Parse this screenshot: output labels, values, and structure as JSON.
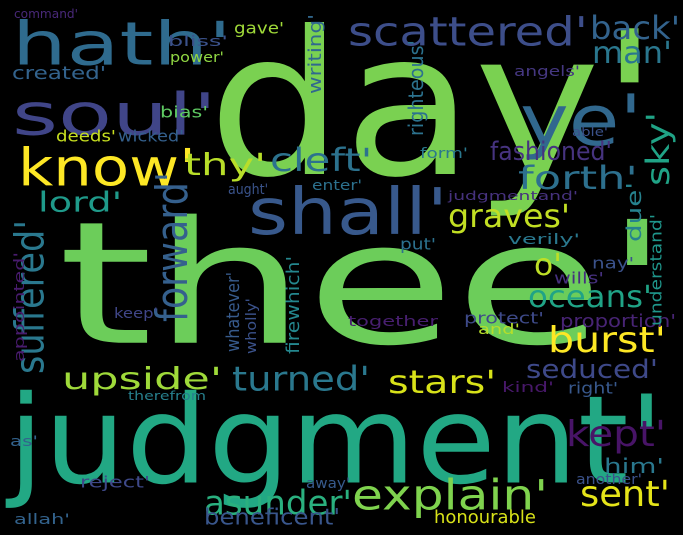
{
  "words": [
    {
      "text": "thee'",
      "color": "#6ccd5a"
    },
    {
      "text": "day'",
      "color": "#7ad151"
    },
    {
      "text": "judgment'",
      "color": "#22a884"
    },
    {
      "text": "hath'",
      "color": "#2f6b8e"
    },
    {
      "text": "soul'",
      "color": "#404588"
    },
    {
      "text": "know'",
      "color": "#fde725"
    },
    {
      "text": "shall'",
      "color": "#38598c"
    },
    {
      "text": "ye'",
      "color": "#31688e"
    },
    {
      "text": "scattered'",
      "color": "#3d4e8a"
    },
    {
      "text": "back'",
      "color": "#33638d"
    },
    {
      "text": "man'",
      "color": "#2a778e"
    },
    {
      "text": "explain'",
      "color": "#7fd34e"
    },
    {
      "text": "asunder'",
      "color": "#2ab07f"
    },
    {
      "text": "burst'",
      "color": "#fde725"
    },
    {
      "text": "stars'",
      "color": "#d8e219"
    },
    {
      "text": "upside'",
      "color": "#9fda3a"
    },
    {
      "text": "turned'",
      "color": "#2a788e"
    },
    {
      "text": "oceans'",
      "color": "#20a386"
    },
    {
      "text": "graves'",
      "color": "#c2df23"
    },
    {
      "text": "forth'",
      "color": "#2d708e"
    },
    {
      "text": "cleft'",
      "color": "#2c728e"
    },
    {
      "text": "thy'",
      "color": "#b8de29"
    },
    {
      "text": "lord'",
      "color": "#1f9a8a"
    },
    {
      "text": "kept'",
      "color": "#481467"
    },
    {
      "text": "sent'",
      "color": "#e5e419"
    },
    {
      "text": "seduced'",
      "color": "#3e4989"
    },
    {
      "text": "fashioned'",
      "color": "#46337f"
    },
    {
      "text": "sky'",
      "color": "#20a386"
    },
    {
      "text": "o'",
      "color": "#bddf26"
    },
    {
      "text": "forward'",
      "color": "#35608d"
    },
    {
      "text": "suffered'",
      "color": "#2a788e"
    },
    {
      "text": "beneficent'",
      "color": "#39568c"
    },
    {
      "text": "honourable",
      "color": "#d8e219"
    },
    {
      "text": "him'",
      "color": "#2a788e"
    },
    {
      "text": "created'",
      "color": "#33638d"
    },
    {
      "text": "deeds'",
      "color": "#c8e020"
    },
    {
      "text": "wicked'",
      "color": "#34608d"
    },
    {
      "text": "bliss'",
      "color": "#3b528b"
    },
    {
      "text": "gave'",
      "color": "#a0da39"
    },
    {
      "text": "power'",
      "color": "#90d743"
    },
    {
      "text": "command'",
      "color": "#482878"
    },
    {
      "text": "bias'",
      "color": "#5ec962"
    },
    {
      "text": "angels'",
      "color": "#453781"
    },
    {
      "text": "able'",
      "color": "#3b528b"
    },
    {
      "text": "form'",
      "color": "#2a788e"
    },
    {
      "text": "aught'",
      "color": "#3a538b"
    },
    {
      "text": "enter'",
      "color": "#2c718e"
    },
    {
      "text": "judgmentand'",
      "color": "#46327e"
    },
    {
      "text": "due'",
      "color": "#26828e"
    },
    {
      "text": "verily'",
      "color": "#2a788e"
    },
    {
      "text": "put'",
      "color": "#2c718e"
    },
    {
      "text": "nay'",
      "color": "#3b528b"
    },
    {
      "text": "wills'",
      "color": "#46307e"
    },
    {
      "text": "protect'",
      "color": "#3e4a89"
    },
    {
      "text": "together",
      "color": "#481f70"
    },
    {
      "text": "and'",
      "color": "#b5de2b"
    },
    {
      "text": "proportion'",
      "color": "#482475"
    },
    {
      "text": "kind'",
      "color": "#48186a"
    },
    {
      "text": "right'",
      "color": "#38588c"
    },
    {
      "text": "therefrom",
      "color": "#27808e"
    },
    {
      "text": "as'",
      "color": "#33638d"
    },
    {
      "text": "reject'",
      "color": "#3e4989"
    },
    {
      "text": "away'",
      "color": "#375a8c"
    },
    {
      "text": "another'",
      "color": "#3b528b"
    },
    {
      "text": "allah'",
      "color": "#33638d"
    },
    {
      "text": "keep'",
      "color": "#404688"
    },
    {
      "text": "appointed'",
      "color": "#481b6d"
    },
    {
      "text": "righteous'",
      "color": "#2c728e"
    },
    {
      "text": "writing'",
      "color": "#31688e"
    },
    {
      "text": "whatever'",
      "color": "#375b8d"
    },
    {
      "text": "wholly'",
      "color": "#3b528b"
    },
    {
      "text": "firewhich'",
      "color": "#24878e"
    },
    {
      "text": "understand'",
      "color": "#1f968b"
    }
  ]
}
